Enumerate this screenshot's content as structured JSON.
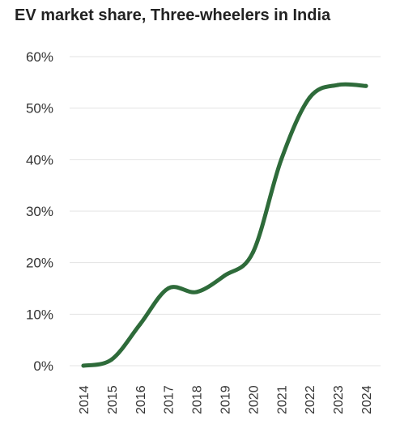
{
  "chart_data": {
    "type": "line",
    "title": "EV market share, Three-wheelers in India",
    "xlabel": "",
    "ylabel": "",
    "x": [
      "2014",
      "2015",
      "2016",
      "2017",
      "2018",
      "2019",
      "2020",
      "2021",
      "2022",
      "2023",
      "2024"
    ],
    "series": [
      {
        "values": [
          0.0,
          1.2,
          8.0,
          15.0,
          14.3,
          17.5,
          22.0,
          40.0,
          52.0,
          54.5,
          54.3
        ]
      }
    ],
    "ylim": [
      0,
      60
    ],
    "yticks": [
      "0%",
      "10%",
      "20%",
      "30%",
      "40%",
      "50%",
      "60%"
    ],
    "grid": true,
    "line_color": "#2e6b3a",
    "grid_color": "#e3e3e3"
  }
}
